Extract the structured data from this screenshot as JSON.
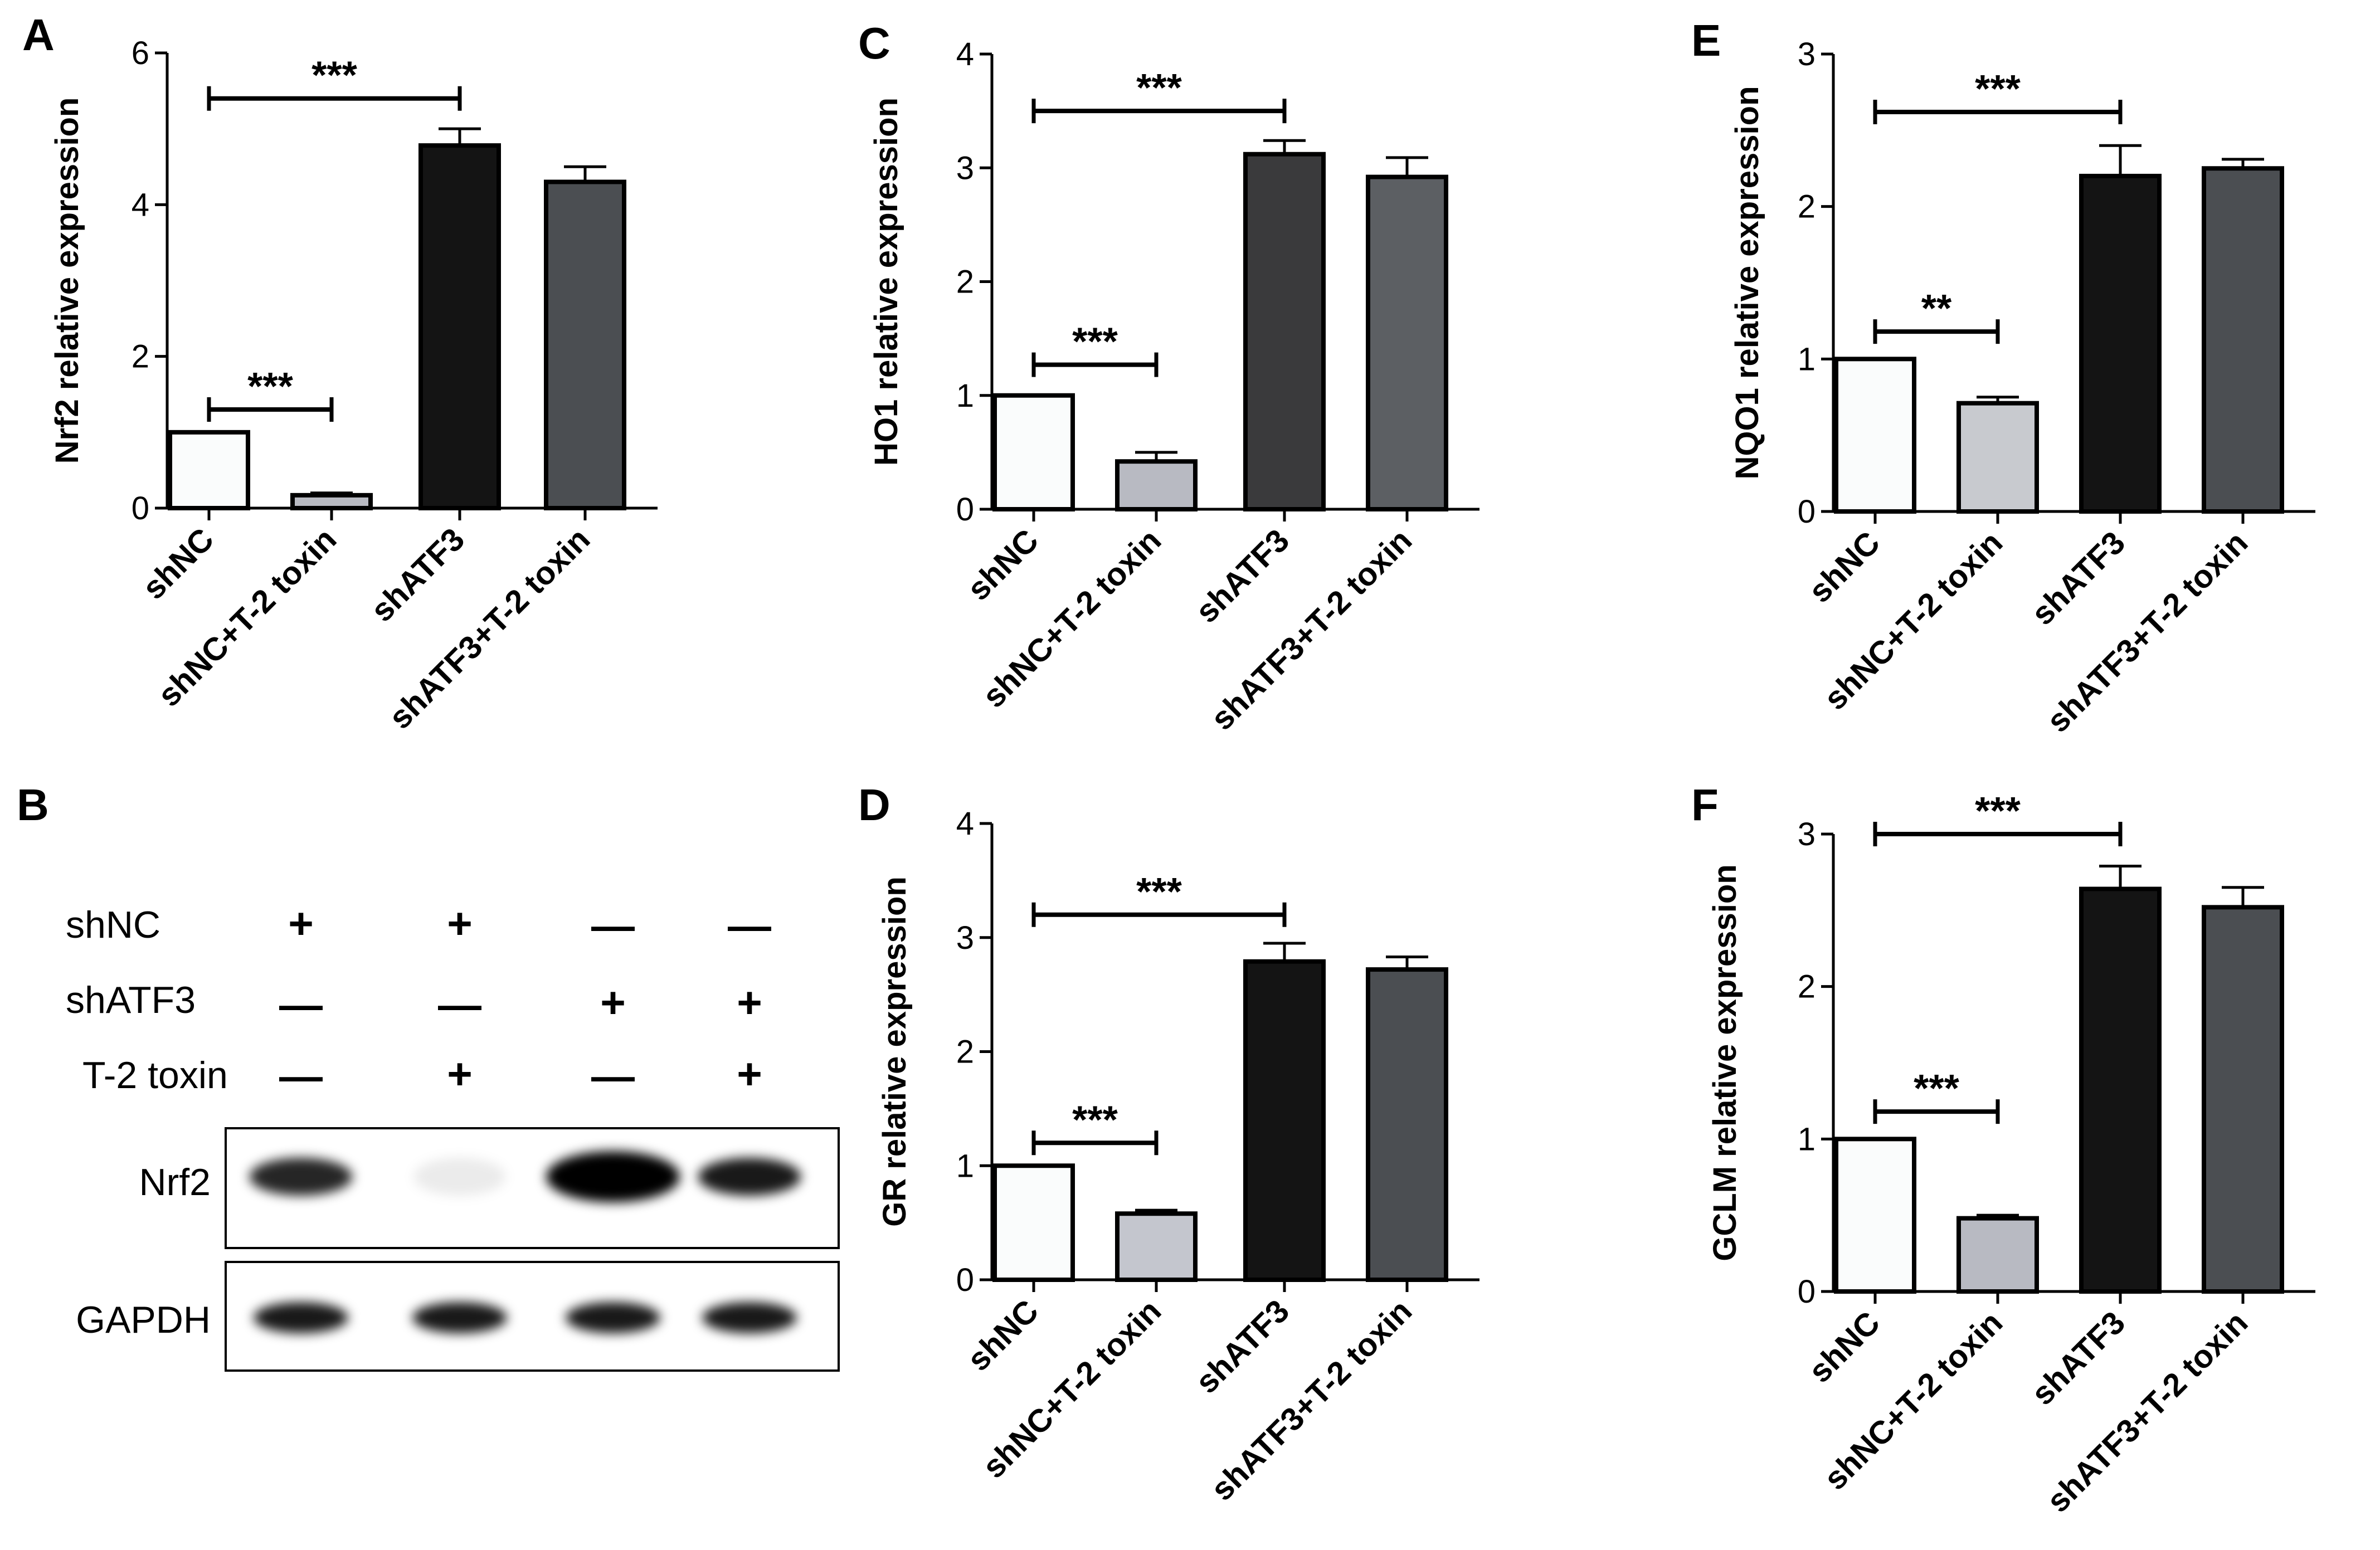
{
  "chart_data": [
    {
      "panel": "A",
      "type": "bar",
      "ylabel": "Nrf2 relative expression",
      "categories": [
        "shNC",
        "shNC+T-2 toxin",
        "shATF3",
        "shATF3+T-2 toxin"
      ],
      "values": [
        1.0,
        0.17,
        4.78,
        4.3
      ],
      "errors": [
        0.0,
        0.03,
        0.22,
        0.2
      ],
      "ylim": [
        0,
        6
      ],
      "yticks": [
        "0",
        "2",
        "4",
        "6"
      ],
      "colors": [
        "#fafcfc",
        "#b8bac2",
        "#141414",
        "#4b4e52"
      ],
      "significance": [
        {
          "from": 0,
          "to": 1,
          "label": "***",
          "level": 1.3
        },
        {
          "from": 0,
          "to": 2,
          "label": "***",
          "level": 5.4
        }
      ]
    },
    {
      "panel": "C",
      "type": "bar",
      "ylabel": "HO1 relative expression",
      "categories": [
        "shNC",
        "shNC+T-2 toxin",
        "shATF3",
        "shATF3+T-2 toxin"
      ],
      "values": [
        1.0,
        0.42,
        3.12,
        2.92
      ],
      "errors": [
        0.0,
        0.08,
        0.12,
        0.17
      ],
      "ylim": [
        0,
        4
      ],
      "yticks": [
        "0",
        "1",
        "2",
        "3",
        "4"
      ],
      "colors": [
        "#fafcfc",
        "#b8bac2",
        "#3a3a3c",
        "#5c5f63"
      ],
      "significance": [
        {
          "from": 0,
          "to": 1,
          "label": "***",
          "level": 1.27
        },
        {
          "from": 0,
          "to": 2,
          "label": "***",
          "level": 3.5
        }
      ]
    },
    {
      "panel": "E",
      "type": "bar",
      "ylabel": "NQO1 relative expression",
      "categories": [
        "shNC",
        "shNC+T-2 toxin",
        "shATF3",
        "shATF3+T-2 toxin"
      ],
      "values": [
        1.0,
        0.71,
        2.2,
        2.25
      ],
      "errors": [
        0.0,
        0.04,
        0.2,
        0.06
      ],
      "ylim": [
        0,
        3
      ],
      "yticks": [
        "0",
        "1",
        "2",
        "3"
      ],
      "colors": [
        "#fafcfc",
        "#c8cacf",
        "#141414",
        "#4b4e52"
      ],
      "significance": [
        {
          "from": 0,
          "to": 1,
          "label": "**",
          "level": 1.18
        },
        {
          "from": 0,
          "to": 2,
          "label": "***",
          "level": 2.62
        }
      ]
    },
    {
      "panel": "D",
      "type": "bar",
      "ylabel": "GR relative expression",
      "categories": [
        "shNC",
        "shNC+T-2 toxin",
        "shATF3",
        "shATF3+T-2 toxin"
      ],
      "values": [
        1.0,
        0.58,
        2.79,
        2.72
      ],
      "errors": [
        0.0,
        0.03,
        0.16,
        0.11
      ],
      "ylim": [
        0,
        4
      ],
      "yticks": [
        "0",
        "1",
        "2",
        "3",
        "4"
      ],
      "colors": [
        "#fafcfc",
        "#c4c6ce",
        "#141414",
        "#4b4e52"
      ],
      "significance": [
        {
          "from": 0,
          "to": 1,
          "label": "***",
          "level": 1.2
        },
        {
          "from": 0,
          "to": 2,
          "label": "***",
          "level": 3.2
        }
      ]
    },
    {
      "panel": "F",
      "type": "bar",
      "ylabel": "GCLM relative expression",
      "categories": [
        "shNC",
        "shNC+T-2 toxin",
        "shATF3",
        "shATF3+T-2 toxin"
      ],
      "values": [
        1.0,
        0.48,
        2.64,
        2.52
      ],
      "errors": [
        0.0,
        0.02,
        0.15,
        0.13
      ],
      "ylim": [
        0,
        3
      ],
      "yticks": [
        "0",
        "1",
        "2",
        "3"
      ],
      "colors": [
        "#fafcfc",
        "#b8bac2",
        "#141414",
        "#4b4e52"
      ],
      "significance": [
        {
          "from": 0,
          "to": 1,
          "label": "***",
          "level": 1.18
        },
        {
          "from": 0,
          "to": 2,
          "label": "***",
          "level": 3.0
        }
      ]
    }
  ],
  "western_blot": {
    "panel": "B",
    "rows": [
      {
        "label": "shNC",
        "signs": [
          "+",
          "+",
          "—",
          "—"
        ]
      },
      {
        "label": "shATF3",
        "signs": [
          "—",
          "—",
          "+",
          "+"
        ]
      },
      {
        "label": "T-2 toxin",
        "signs": [
          "—",
          "+",
          "—",
          "+"
        ]
      }
    ],
    "blots": [
      {
        "label": "Nrf2",
        "intensity": [
          0.85,
          0.08,
          1.0,
          0.9
        ]
      },
      {
        "label": "GAPDH",
        "intensity": [
          0.9,
          0.9,
          0.9,
          0.9
        ]
      }
    ]
  }
}
